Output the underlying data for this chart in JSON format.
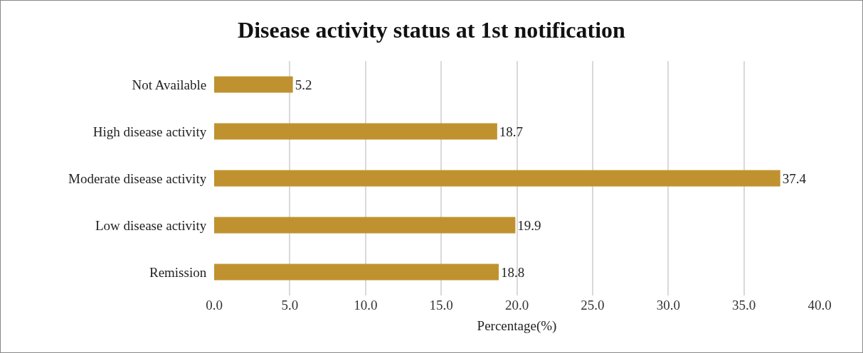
{
  "chart_data": {
    "type": "bar",
    "orientation": "horizontal",
    "title": "Disease activity status at 1st notification",
    "xlabel": "Percentage(%)",
    "categories": [
      "Not Available",
      "High disease activity",
      "Moderate disease activity",
      "Low disease activity",
      "Remission"
    ],
    "values": [
      5.2,
      18.7,
      37.4,
      19.9,
      18.8
    ],
    "color": "#c0922f",
    "data_labels": true,
    "xlim": [
      0,
      40
    ],
    "xticks": [
      {
        "value": 0,
        "label": "0.0"
      },
      {
        "value": 5,
        "label": "5.0"
      },
      {
        "value": 10,
        "label": "10.0"
      },
      {
        "value": 15,
        "label": "15.0"
      },
      {
        "value": 20,
        "label": "20.0"
      },
      {
        "value": 25,
        "label": "25.0"
      },
      {
        "value": 30,
        "label": "30.0"
      },
      {
        "value": 35,
        "label": "35.0"
      },
      {
        "value": 40,
        "label": "40.0"
      }
    ],
    "grid": "x",
    "legend": false
  }
}
